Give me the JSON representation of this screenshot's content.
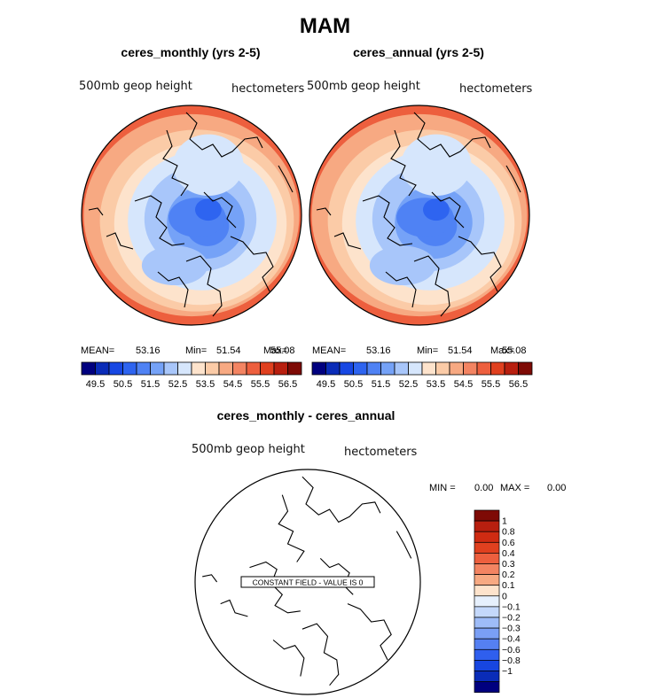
{
  "figure": {
    "title": "MAM",
    "colors": {
      "ramp": [
        "#00007f",
        "#0a2cb8",
        "#1747e3",
        "#2e64f0",
        "#4f82f4",
        "#75a2f7",
        "#a8c6fa",
        "#d6e6fc",
        "#fde3cc",
        "#fbcba7",
        "#f7a982",
        "#f38462",
        "#ed5f3e",
        "#e0401f",
        "#b81f0f",
        "#7e0a05"
      ],
      "diff_ramp": [
        "#7e0a05",
        "#b81f0f",
        "#cf2b12",
        "#e0401f",
        "#ed5f3e",
        "#f38462",
        "#f7a982",
        "#fde3cc",
        "#e6f0fd",
        "#c4d8fb",
        "#9ebcf8",
        "#7a9ff5",
        "#5580f2",
        "#2f5fee",
        "#1746e0",
        "#0a2cb8",
        "#00007f"
      ]
    }
  },
  "panels": [
    {
      "title": "ceres_monthly (yrs 2-5)",
      "variable": "500mb geop height",
      "units": "hectometers",
      "stats": {
        "mean_label": "MEAN=",
        "mean": "53.16",
        "min_label": "Min=",
        "min": "51.54",
        "max_label": "Max=",
        "max": "55.08"
      },
      "colorbar_labels": [
        "49.5",
        "50.5",
        "51.5",
        "52.5",
        "53.5",
        "54.5",
        "55.5",
        "56.5"
      ]
    },
    {
      "title": "ceres_annual (yrs 2-5)",
      "variable": "500mb geop height",
      "units": "hectometers",
      "stats": {
        "mean_label": "MEAN=",
        "mean": "53.16",
        "min_label": "Min=",
        "min": "51.54",
        "max_label": "Max=",
        "max": "55.08"
      },
      "colorbar_labels": [
        "49.5",
        "50.5",
        "51.5",
        "52.5",
        "53.5",
        "54.5",
        "55.5",
        "56.5"
      ]
    },
    {
      "title": "ceres_monthly - ceres_annual",
      "variable": "500mb geop height",
      "units": "hectometers",
      "stats": {
        "min_label": "MIN =",
        "min": "0.00",
        "max_label": "MAX =",
        "max": "0.00"
      },
      "annotation": "CONSTANT FIELD - VALUE IS 0",
      "colorbar_labels": [
        "1",
        "0.8",
        "0.6",
        "0.4",
        "0.3",
        "0.2",
        "0.1",
        "0",
        "−0.1",
        "−0.2",
        "−0.3",
        "−0.4",
        "−0.6",
        "−0.8",
        "−1"
      ]
    }
  ],
  "chart_data": [
    {
      "type": "heatmap",
      "projection": "north polar stereographic",
      "title": "ceres_monthly (yrs 2-5)",
      "field": "500mb geop height",
      "units": "hectometers",
      "mean": 53.16,
      "min": 51.54,
      "max": 55.08,
      "levels": [
        49.5,
        50.0,
        50.5,
        51.0,
        51.5,
        52.0,
        52.5,
        53.0,
        53.5,
        54.0,
        54.5,
        55.0,
        55.5,
        56.0,
        56.5
      ]
    },
    {
      "type": "heatmap",
      "projection": "north polar stereographic",
      "title": "ceres_annual (yrs 2-5)",
      "field": "500mb geop height",
      "units": "hectometers",
      "mean": 53.16,
      "min": 51.54,
      "max": 55.08,
      "levels": [
        49.5,
        50.0,
        50.5,
        51.0,
        51.5,
        52.0,
        52.5,
        53.0,
        53.5,
        54.0,
        54.5,
        55.0,
        55.5,
        56.0,
        56.5
      ]
    },
    {
      "type": "heatmap",
      "projection": "north polar stereographic",
      "title": "ceres_monthly - ceres_annual",
      "field": "500mb geop height",
      "units": "hectometers",
      "min": 0.0,
      "max": 0.0,
      "constant_value": 0,
      "levels": [
        -1,
        -0.8,
        -0.6,
        -0.4,
        -0.3,
        -0.2,
        -0.1,
        0,
        0.1,
        0.2,
        0.3,
        0.4,
        0.6,
        0.8,
        1
      ]
    }
  ]
}
